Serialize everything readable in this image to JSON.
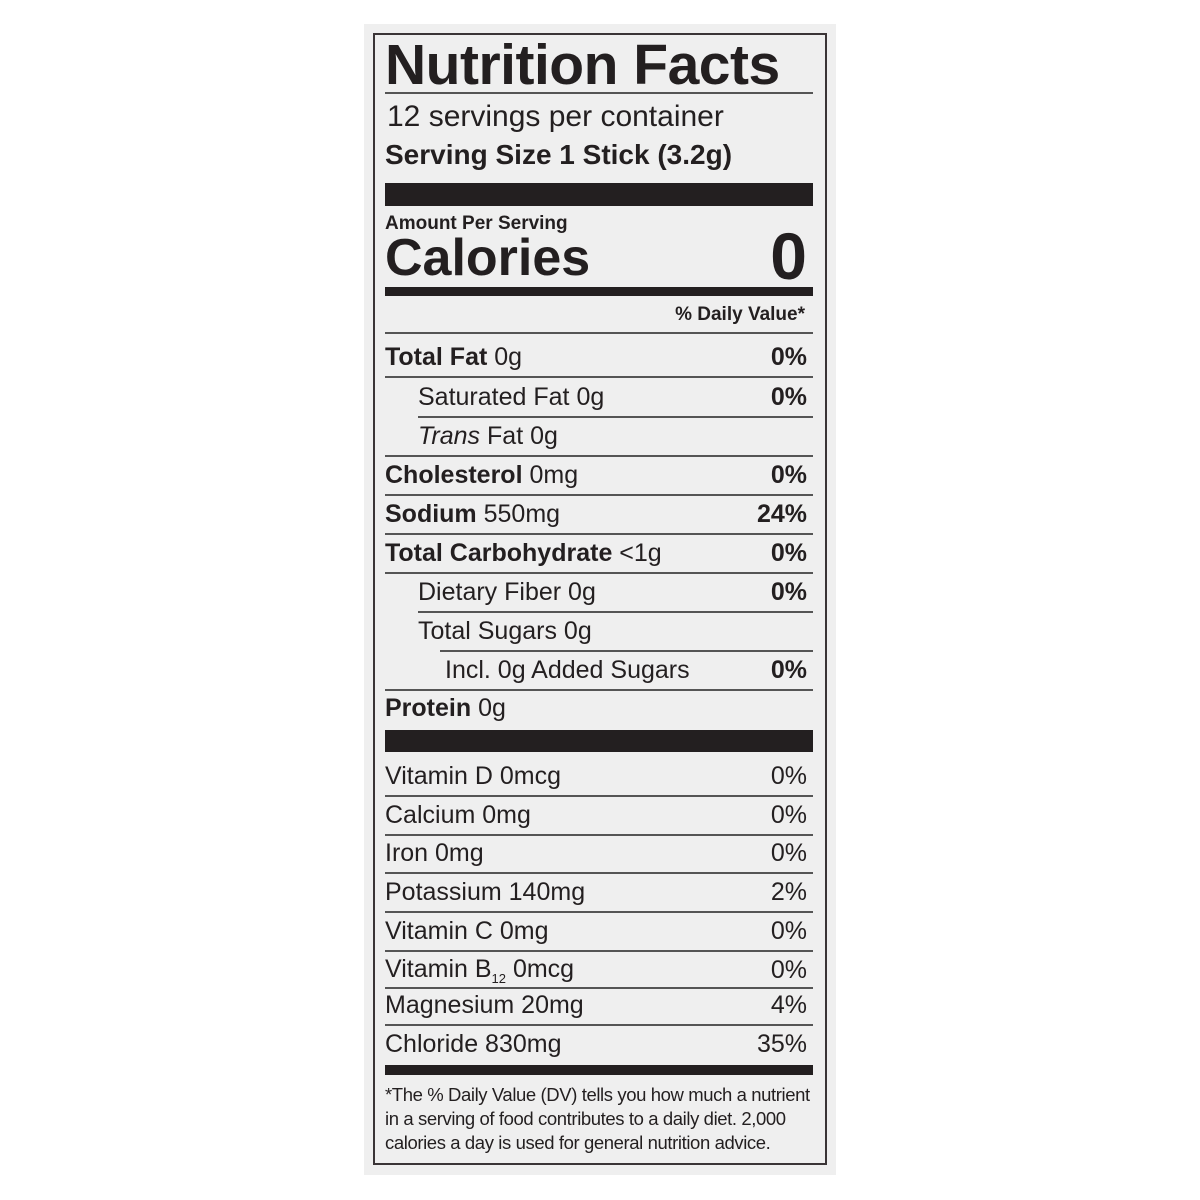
{
  "title": "Nutrition Facts",
  "servings_per_container": "12 servings per container",
  "serving_size": "Serving Size 1 Stick (3.2g)",
  "amount_per_serving": "Amount Per Serving",
  "calories_label": "Calories",
  "calories_value": "0",
  "daily_value_header": "% Daily Value*",
  "nutrients": [
    {
      "name": "Total Fat",
      "amount": "0g",
      "dv": "0%"
    },
    {
      "name": "Saturated Fat",
      "amount": "0g",
      "dv": "0%"
    },
    {
      "name": "Trans",
      "amount": "Fat 0g",
      "dv": ""
    },
    {
      "name": "Cholesterol",
      "amount": "0mg",
      "dv": "0%"
    },
    {
      "name": "Sodium",
      "amount": "550mg",
      "dv": "24%"
    },
    {
      "name": "Total Carbohydrate",
      "amount": "<1g",
      "dv": "0%"
    },
    {
      "name": "Dietary Fiber",
      "amount": "0g",
      "dv": "0%"
    },
    {
      "name": "Total Sugars",
      "amount": "0g",
      "dv": ""
    },
    {
      "name": "Incl. 0g Added Sugars",
      "amount": "",
      "dv": "0%"
    },
    {
      "name": "Protein",
      "amount": "0g",
      "dv": ""
    }
  ],
  "vitamins": [
    {
      "name": "Vitamin D 0mcg",
      "dv": "0%"
    },
    {
      "name": "Calcium 0mg",
      "dv": "0%"
    },
    {
      "name": "Iron 0mg",
      "dv": "0%"
    },
    {
      "name": "Potassium 140mg",
      "dv": "2%"
    },
    {
      "name": "Vitamin C 0mg",
      "dv": "0%"
    },
    {
      "name": "Vitamin B",
      "sub": "12",
      "amount": "0mcg",
      "dv": "0%"
    },
    {
      "name": "Magnesium 20mg",
      "dv": "4%"
    },
    {
      "name": "Chloride 830mg",
      "dv": "35%"
    }
  ],
  "footnote": "*The % Daily Value (DV) tells you how much a nutrient in a serving of food contributes to a daily diet. 2,000 calories a day is used for general nutrition advice."
}
